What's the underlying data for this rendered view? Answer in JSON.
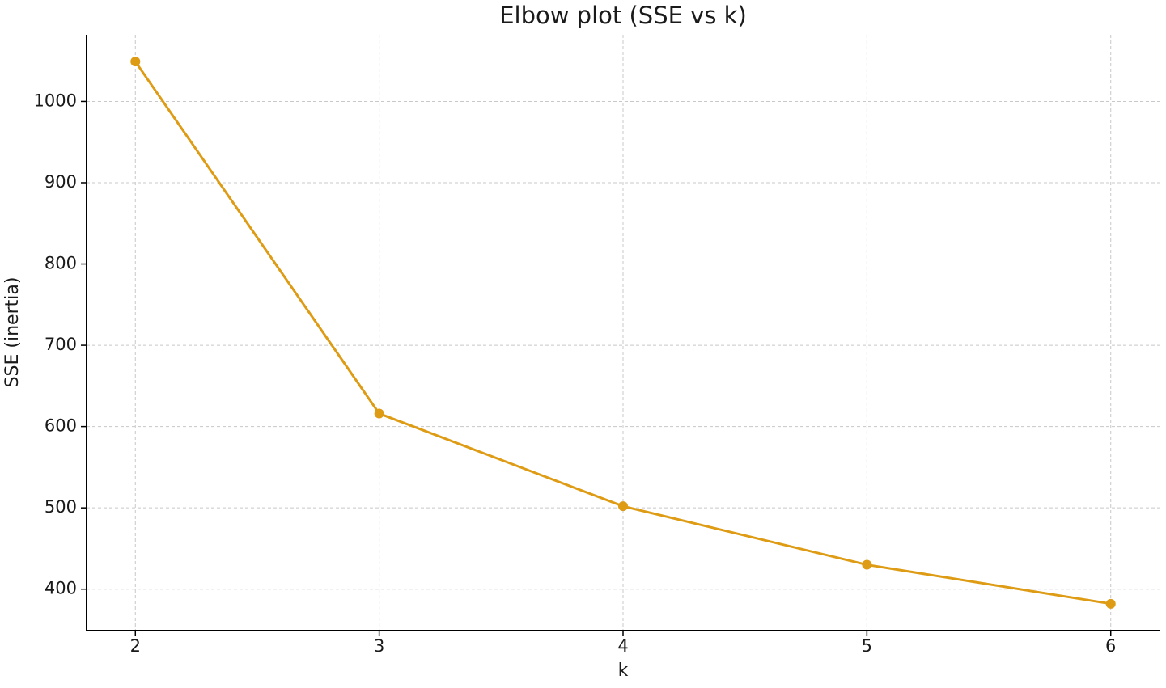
{
  "chart_data": {
    "type": "line",
    "title": "Elbow plot (SSE vs k)",
    "x_label": "k",
    "y_label": "SSE (inertia)",
    "x": [
      2,
      3,
      4,
      5,
      6
    ],
    "series": [
      {
        "name": "SSE",
        "color": "#de9b14",
        "values": [
          1049,
          616,
          502,
          430,
          382
        ]
      }
    ],
    "xlim": [
      1.8,
      6.2
    ],
    "xticks": [
      2,
      3,
      4,
      5,
      6
    ],
    "ylim": [
      349,
      1082
    ],
    "yticks": [
      400,
      500,
      600,
      700,
      800,
      900,
      1000
    ],
    "grid": true
  }
}
